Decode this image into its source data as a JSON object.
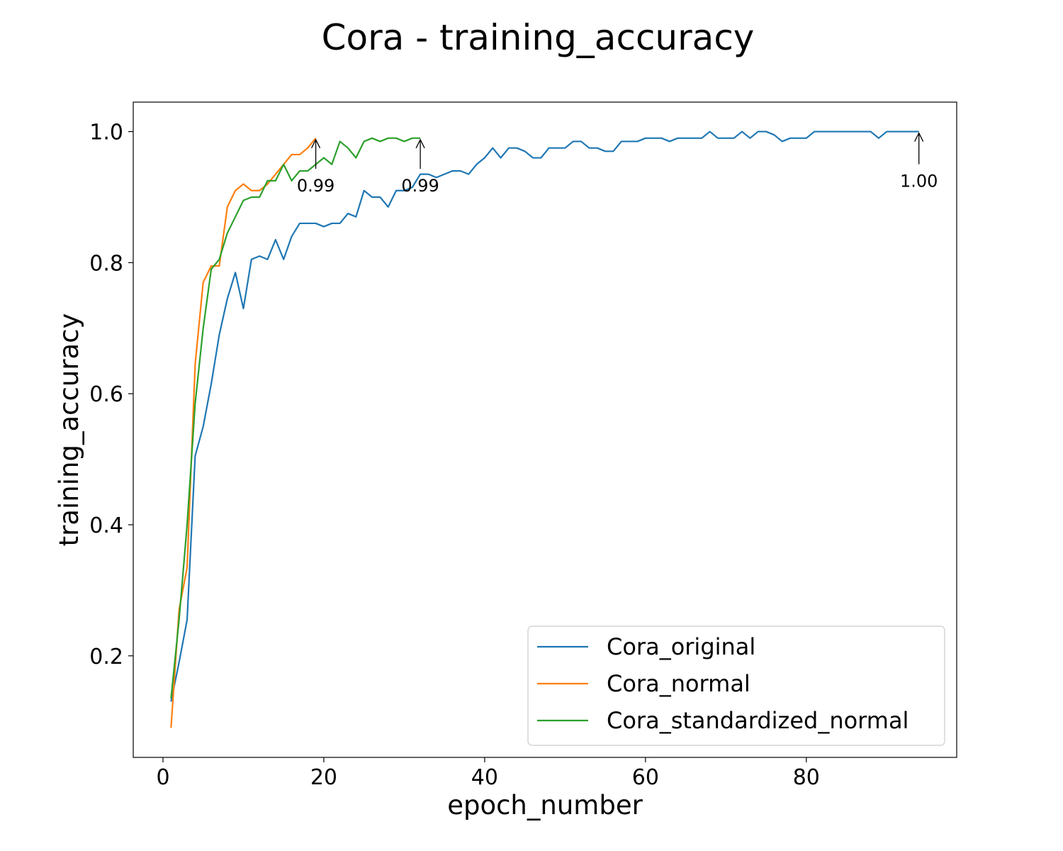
{
  "chart_data": {
    "type": "line",
    "title": "Cora - training_accuracy",
    "xlabel": "epoch_number",
    "ylabel": "training_accuracy",
    "xlim": [
      -3.7,
      98.7
    ],
    "ylim": [
      0.045,
      1.045
    ],
    "xticks": [
      0,
      20,
      40,
      60,
      80
    ],
    "yticks": [
      0.2,
      0.4,
      0.6,
      0.8,
      1.0
    ],
    "xtick_labels": [
      "0",
      "20",
      "40",
      "60",
      "80"
    ],
    "ytick_labels": [
      "0.2",
      "0.4",
      "0.6",
      "0.8",
      "1.0"
    ],
    "grid": false,
    "legend": "lower-right",
    "series": [
      {
        "name": "Cora_original",
        "color": "#1f77b4",
        "x": [
          1,
          2,
          3,
          4,
          5,
          6,
          7,
          8,
          9,
          10,
          11,
          12,
          13,
          14,
          15,
          16,
          17,
          18,
          19,
          20,
          21,
          22,
          23,
          24,
          25,
          26,
          27,
          28,
          29,
          30,
          31,
          32,
          33,
          34,
          35,
          36,
          37,
          38,
          39,
          40,
          41,
          42,
          43,
          44,
          45,
          46,
          47,
          48,
          49,
          50,
          51,
          52,
          53,
          54,
          55,
          56,
          57,
          58,
          59,
          60,
          61,
          62,
          63,
          64,
          65,
          66,
          67,
          68,
          69,
          70,
          71,
          72,
          73,
          74,
          75,
          76,
          77,
          78,
          79,
          80,
          81,
          82,
          83,
          84,
          85,
          86,
          87,
          88,
          89,
          90,
          91,
          92,
          93,
          94
        ],
        "values": [
          0.13,
          0.19,
          0.255,
          0.505,
          0.55,
          0.615,
          0.69,
          0.745,
          0.785,
          0.73,
          0.805,
          0.81,
          0.805,
          0.835,
          0.805,
          0.84,
          0.86,
          0.86,
          0.86,
          0.855,
          0.86,
          0.86,
          0.875,
          0.87,
          0.91,
          0.9,
          0.9,
          0.885,
          0.91,
          0.91,
          0.915,
          0.935,
          0.935,
          0.93,
          0.935,
          0.94,
          0.94,
          0.935,
          0.95,
          0.96,
          0.975,
          0.96,
          0.975,
          0.975,
          0.97,
          0.96,
          0.96,
          0.975,
          0.975,
          0.975,
          0.985,
          0.985,
          0.975,
          0.975,
          0.97,
          0.97,
          0.985,
          0.985,
          0.985,
          0.99,
          0.99,
          0.99,
          0.985,
          0.99,
          0.99,
          0.99,
          0.99,
          1.0,
          0.99,
          0.99,
          0.99,
          1.0,
          0.99,
          1.0,
          1.0,
          0.995,
          0.985,
          0.99,
          0.99,
          0.99,
          1.0,
          1.0,
          1.0,
          1.0,
          1.0,
          1.0,
          1.0,
          1.0,
          0.99,
          1.0,
          1.0,
          1.0,
          1.0,
          1.0
        ]
      },
      {
        "name": "Cora_normal",
        "color": "#ff7f0e",
        "x": [
          1,
          2,
          3,
          4,
          5,
          6,
          7,
          8,
          9,
          10,
          11,
          12,
          13,
          14,
          15,
          16,
          17,
          18,
          19
        ],
        "values": [
          0.09,
          0.27,
          0.335,
          0.645,
          0.77,
          0.795,
          0.795,
          0.885,
          0.91,
          0.92,
          0.91,
          0.91,
          0.92,
          0.935,
          0.95,
          0.965,
          0.965,
          0.975,
          0.99
        ]
      },
      {
        "name": "Cora_standardized_normal",
        "color": "#2ca02c",
        "x": [
          1,
          2,
          3,
          4,
          5,
          6,
          7,
          8,
          9,
          10,
          11,
          12,
          13,
          14,
          15,
          16,
          17,
          18,
          19,
          20,
          21,
          22,
          23,
          24,
          25,
          26,
          27,
          28,
          29,
          30,
          31,
          32
        ],
        "values": [
          0.135,
          0.255,
          0.4,
          0.585,
          0.7,
          0.79,
          0.805,
          0.845,
          0.87,
          0.895,
          0.9,
          0.9,
          0.925,
          0.925,
          0.95,
          0.925,
          0.94,
          0.94,
          0.95,
          0.96,
          0.95,
          0.985,
          0.975,
          0.96,
          0.985,
          0.99,
          0.985,
          0.99,
          0.99,
          0.985,
          0.99,
          0.99
        ]
      }
    ],
    "annotations": [
      {
        "text": "0.99",
        "x": 19,
        "y": 0.99,
        "text_y": 0.915
      },
      {
        "text": "0.99",
        "x": 32,
        "y": 0.99,
        "text_y": 0.915
      },
      {
        "text": "1.00",
        "x": 94,
        "y": 1.0,
        "text_y": 0.922
      }
    ]
  }
}
